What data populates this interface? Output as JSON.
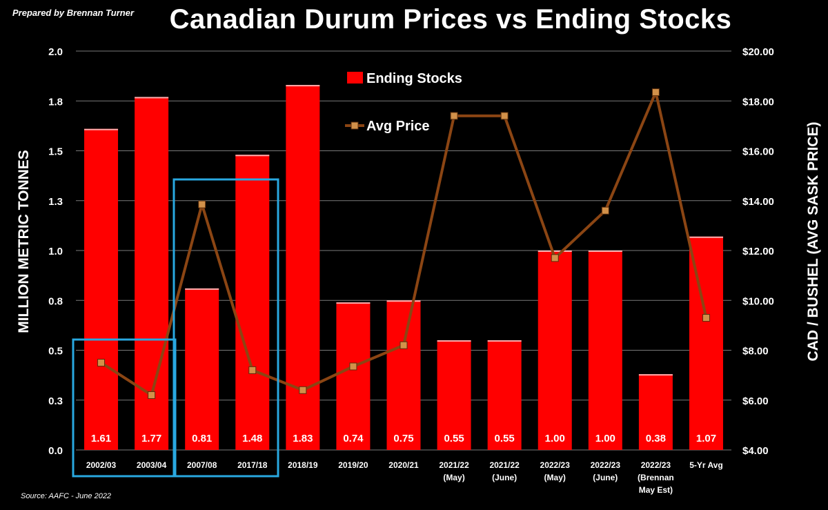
{
  "prepared_by": "Prepared by Brennan Turner",
  "source": "Source: AAFC -  June 2022",
  "chart_data": {
    "type": "bar",
    "title": "Canadian Durum Prices vs Ending Stocks",
    "ylabel": "MILLION METRIC TONNES",
    "y2label": "CAD / BUSHEL (AVG SASK PRICE)",
    "ylim": [
      0,
      2.0
    ],
    "y2lim": [
      4,
      20
    ],
    "y_ticks": [
      "0.0",
      "0.3",
      "0.5",
      "0.8",
      "1.0",
      "1.3",
      "1.5",
      "1.8",
      "2.0"
    ],
    "y2_ticks": [
      "$4.00",
      "$6.00",
      "$8.00",
      "$10.00",
      "$12.00",
      "$14.00",
      "$16.00",
      "$18.00",
      "$20.00"
    ],
    "categories": [
      [
        "2002/03"
      ],
      [
        "2003/04"
      ],
      [
        "2007/08"
      ],
      [
        "2017/18"
      ],
      [
        "2018/19"
      ],
      [
        "2019/20"
      ],
      [
        "2020/21"
      ],
      [
        "2021/22",
        "(May)"
      ],
      [
        "2021/22",
        "(June)"
      ],
      [
        "2022/23",
        "(May)"
      ],
      [
        "2022/23",
        "(June)"
      ],
      [
        "2022/23",
        "(Brennan",
        "May Est)"
      ],
      [
        "5-Yr Avg"
      ]
    ],
    "series": [
      {
        "name": "Ending Stocks",
        "type": "bar",
        "color": "#ff0000",
        "values": [
          1.61,
          1.77,
          0.81,
          1.48,
          1.83,
          0.74,
          0.75,
          0.55,
          0.55,
          1.0,
          1.0,
          0.38,
          1.07
        ],
        "labels": [
          "1.61",
          "1.77",
          "0.81",
          "1.48",
          "1.83",
          "0.74",
          "0.75",
          "0.55",
          "0.55",
          "1.00",
          "1.00",
          "0.38",
          "1.07"
        ]
      },
      {
        "name": "Avg Price",
        "type": "line",
        "axis": "right",
        "color": "#8b4513",
        "values": [
          7.5,
          6.2,
          13.85,
          7.2,
          6.4,
          7.35,
          8.2,
          17.4,
          17.4,
          11.7,
          13.6,
          18.35,
          9.3
        ]
      }
    ],
    "legend": {
      "position": "top-center",
      "entries": [
        "Ending Stocks",
        "Avg Price"
      ]
    },
    "highlight_groups": [
      {
        "color": "#29a8e0",
        "categories": [
          "2002/03",
          "2003/04"
        ]
      },
      {
        "color": "#29a8e0",
        "categories": [
          "2007/08",
          "2017/18"
        ]
      }
    ]
  }
}
